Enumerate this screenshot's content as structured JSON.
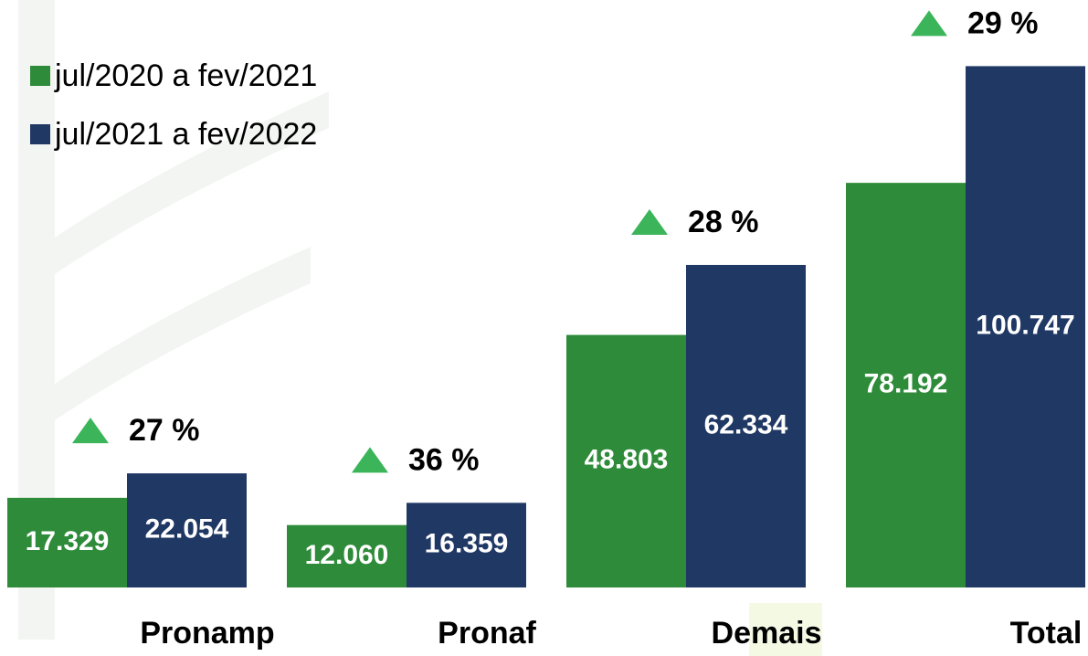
{
  "chart_data": {
    "type": "bar",
    "categories": [
      "Pronamp",
      "Pronaf",
      "Demais",
      "Total"
    ],
    "series": [
      {
        "name": "jul/2020 a fev/2021",
        "color": "#2e8b3a",
        "values": [
          17329,
          12060,
          48803,
          78192
        ],
        "value_labels": [
          "17.329",
          "12.060",
          "48.803",
          "78.192"
        ]
      },
      {
        "name": "jul/2021 a fev/2022",
        "color": "#203864",
        "values": [
          22054,
          16359,
          62334,
          100747
        ],
        "value_labels": [
          "22.054",
          "16.359",
          "62.334",
          "100.747"
        ]
      }
    ],
    "annotations": [
      "27 %",
      "36 %",
      "28 %",
      "29 %"
    ],
    "annotation_color": "#3cb55a",
    "ylim": [
      0,
      113000
    ],
    "legend": "top-left"
  }
}
